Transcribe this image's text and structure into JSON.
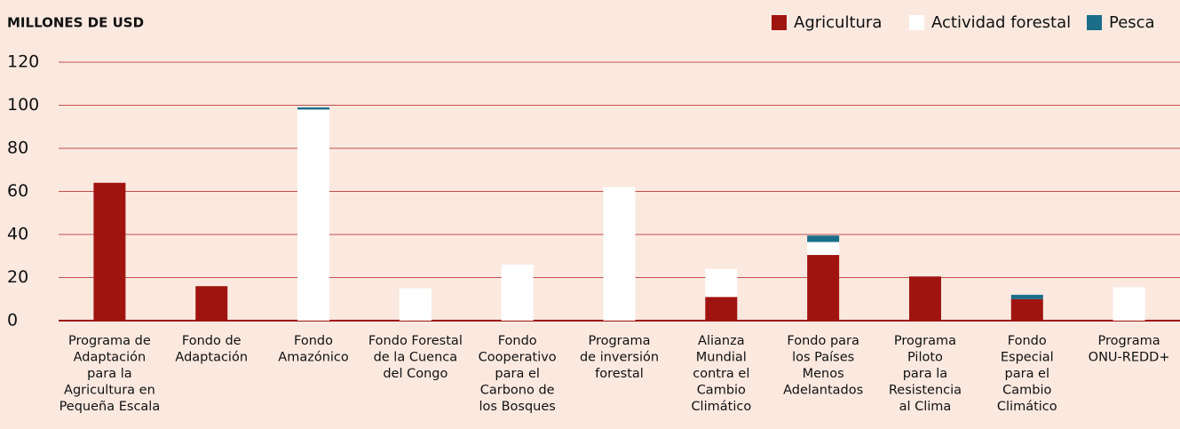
{
  "chart_data": {
    "type": "stacked_bar",
    "y_axis_label": "MILLONES DE USD",
    "categories": [
      [
        "Programa de",
        "Adaptación",
        "para la",
        "Agricultura en",
        "Pequeña Escala"
      ],
      [
        "Fondo de",
        "Adaptación"
      ],
      [
        "Fondo",
        "Amazónico"
      ],
      [
        "Fondo Forestal",
        "de la Cuenca",
        "del Congo"
      ],
      [
        "Fondo",
        "Cooperativo",
        "para el",
        "Carbono de",
        "los Bosques"
      ],
      [
        "Programa",
        "de inversión",
        "forestal"
      ],
      [
        "Alianza",
        "Mundial",
        "contra el",
        "Cambio",
        "Climático"
      ],
      [
        "Fondo para",
        "los Países",
        "Menos",
        "Adelantados"
      ],
      [
        "Programa",
        "Piloto",
        "para la",
        "Resistencia",
        "al Clima"
      ],
      [
        "Fondo",
        "Especial",
        "para el",
        "Cambio",
        "Climático"
      ],
      [
        "Programa",
        "ONU-REDD+"
      ]
    ],
    "series": [
      {
        "name": "Agricultura",
        "color": "#a01410",
        "values": [
          64,
          16,
          0,
          0,
          0,
          0,
          11,
          30.5,
          20.5,
          10,
          0
        ]
      },
      {
        "name": "Actividad forestal",
        "color": "#ffffff",
        "values": [
          0,
          0,
          98,
          15,
          26,
          62,
          13,
          6,
          0,
          0,
          15.5
        ]
      },
      {
        "name": "Pesca",
        "color": "#1a6e8a",
        "values": [
          0,
          0,
          1,
          0,
          0,
          0,
          0,
          3,
          0,
          2,
          0
        ]
      }
    ],
    "ylim": [
      0,
      120
    ],
    "yticks": [
      0,
      20,
      40,
      60,
      80,
      100,
      120
    ],
    "grid": true,
    "legend": "top-right"
  }
}
